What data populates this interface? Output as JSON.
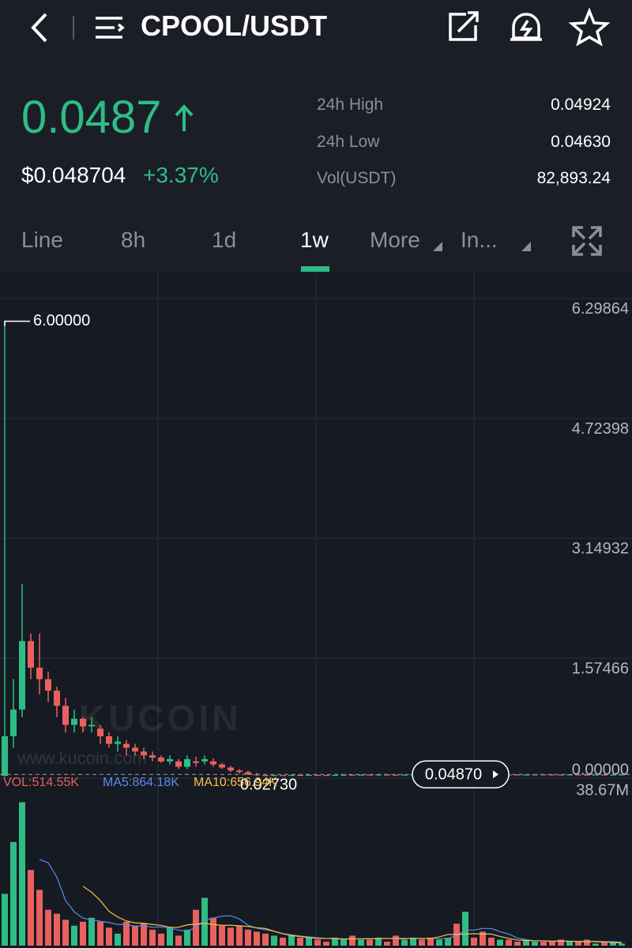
{
  "header": {
    "title": "CPOOL/USDT"
  },
  "ticker": {
    "price": "0.0487",
    "usd_price": "$0.048704",
    "change": "+3.37%",
    "stats": [
      {
        "label": "24h High",
        "value": "0.04924"
      },
      {
        "label": "24h Low",
        "value": "0.04630"
      },
      {
        "label": "Vol(USDT)",
        "value": "82,893.24"
      }
    ]
  },
  "tabs": [
    "Line",
    "8h",
    "1d",
    "1w",
    "More",
    "In..."
  ],
  "active_tab": 3,
  "watermark": {
    "brand": "KUCOIN",
    "url": "www.kucoin.com"
  },
  "chart_data": [
    {
      "type": "candlestick",
      "up_color": "#2ebd85",
      "down_color": "#e8615f",
      "grid": true,
      "ylim": [
        0,
        6.64
      ],
      "yticks": [
        {
          "value": 0,
          "label": "0.00000"
        },
        1.57466,
        3.14932,
        4.72398,
        6.29864
      ],
      "max_label": {
        "value": 6,
        "label": "6.00000"
      },
      "min_label": {
        "value": 0.0273,
        "label": "0.02730"
      },
      "last_price": {
        "value": 0.0487,
        "label": "0.04870"
      },
      "open": [
        0.03,
        0.55,
        0.9,
        1.8,
        1.45,
        1.3,
        1.15,
        0.95,
        0.7,
        0.78,
        0.68,
        0.65,
        0.55,
        0.45,
        0.45,
        0.4,
        0.35,
        0.3,
        0.27,
        0.22,
        0.22,
        0.15,
        0.22,
        0.22,
        0.22,
        0.18,
        0.14,
        0.1,
        0.08,
        0.05,
        0.04,
        0.035,
        0.04,
        0.038,
        0.042,
        0.04,
        0.043,
        0.041,
        0.039,
        0.042,
        0.045,
        0.043,
        0.046,
        0.044,
        0.047,
        0.045,
        0.043,
        0.046,
        0.048,
        0.046,
        0.044,
        0.047,
        0.05,
        0.048,
        0.052,
        0.05,
        0.048,
        0.047,
        0.049,
        0.048,
        0.046,
        0.047,
        0.049,
        0.048,
        0.047,
        0.046,
        0.048,
        0.047,
        0.046,
        0.047,
        0.046,
        0.0471
      ],
      "high": [
        6.0,
        1.3,
        2.55,
        1.9,
        1.9,
        1.4,
        1.2,
        1.05,
        0.9,
        0.8,
        0.8,
        0.7,
        0.6,
        0.55,
        0.5,
        0.45,
        0.4,
        0.35,
        0.3,
        0.3,
        0.25,
        0.3,
        0.28,
        0.3,
        0.26,
        0.2,
        0.16,
        0.12,
        0.1,
        0.07,
        0.05,
        0.043,
        0.043,
        0.045,
        0.045,
        0.046,
        0.046,
        0.044,
        0.045,
        0.048,
        0.048,
        0.049,
        0.049,
        0.05,
        0.05,
        0.048,
        0.049,
        0.051,
        0.051,
        0.049,
        0.05,
        0.053,
        0.053,
        0.058,
        0.055,
        0.053,
        0.051,
        0.052,
        0.052,
        0.051,
        0.05,
        0.052,
        0.052,
        0.051,
        0.05,
        0.051,
        0.051,
        0.05,
        0.05,
        0.05,
        0.05,
        0.04924
      ],
      "low": [
        0.02,
        0.4,
        0.8,
        1.3,
        1.1,
        1.0,
        0.8,
        0.6,
        0.6,
        0.6,
        0.6,
        0.45,
        0.4,
        0.35,
        0.3,
        0.3,
        0.25,
        0.22,
        0.2,
        0.18,
        0.12,
        0.12,
        0.15,
        0.18,
        0.15,
        0.12,
        0.08,
        0.06,
        0.04,
        0.03,
        0.0273,
        0.032,
        0.035,
        0.035,
        0.037,
        0.037,
        0.038,
        0.036,
        0.036,
        0.039,
        0.04,
        0.04,
        0.041,
        0.041,
        0.042,
        0.04,
        0.04,
        0.043,
        0.043,
        0.041,
        0.041,
        0.044,
        0.045,
        0.045,
        0.047,
        0.045,
        0.044,
        0.044,
        0.045,
        0.043,
        0.043,
        0.044,
        0.045,
        0.044,
        0.043,
        0.043,
        0.044,
        0.043,
        0.043,
        0.043,
        0.043,
        0.0463
      ],
      "close": [
        0.55,
        0.9,
        1.8,
        1.45,
        1.3,
        1.15,
        0.95,
        0.7,
        0.78,
        0.68,
        0.7,
        0.55,
        0.45,
        0.48,
        0.4,
        0.35,
        0.3,
        0.27,
        0.22,
        0.25,
        0.15,
        0.25,
        0.2,
        0.25,
        0.18,
        0.14,
        0.1,
        0.08,
        0.05,
        0.04,
        0.035,
        0.04,
        0.038,
        0.042,
        0.04,
        0.043,
        0.041,
        0.039,
        0.042,
        0.045,
        0.043,
        0.046,
        0.044,
        0.047,
        0.045,
        0.043,
        0.046,
        0.048,
        0.046,
        0.044,
        0.047,
        0.05,
        0.048,
        0.052,
        0.05,
        0.048,
        0.047,
        0.049,
        0.048,
        0.046,
        0.047,
        0.049,
        0.048,
        0.047,
        0.046,
        0.048,
        0.047,
        0.046,
        0.047,
        0.046,
        0.0471,
        0.0487
      ]
    },
    {
      "type": "bar",
      "ylim": [
        0,
        38.67
      ],
      "yticks": [
        {
          "value": 38.67,
          "label": "38.67M"
        }
      ],
      "series": [
        {
          "name": "VOL:514.55K",
          "color": "#e8615f",
          "values": [
            13,
            26,
            36,
            19,
            14,
            9,
            8,
            6.5,
            5,
            6,
            7,
            6,
            4.5,
            3,
            6,
            5,
            5.5,
            4,
            3,
            4.5,
            2.5,
            4,
            9,
            12,
            7,
            5,
            4.5,
            5,
            4,
            3.5,
            3,
            2.5,
            2,
            2.5,
            2,
            2,
            1.5,
            1,
            2,
            1.5,
            2.5,
            1.5,
            1.5,
            2,
            1,
            2.5,
            1.5,
            2,
            1.5,
            2,
            1.5,
            2,
            5.5,
            8.5,
            2,
            3.5,
            2,
            1.5,
            1.5,
            1,
            1.5,
            1,
            1,
            1,
            1.5,
            1,
            1,
            1.5,
            0.5,
            1,
            1,
            0.51455
          ]
        },
        {
          "name": "MA5:864.18K",
          "color": "#5b8def",
          "values": [
            null,
            null,
            null,
            null,
            21.6,
            20.8,
            17.2,
            11.3,
            8.5,
            6.9,
            6.5,
            6.1,
            5.8,
            5.3,
            5.3,
            4.9,
            5,
            4.6,
            4.7,
            4.4,
            3.9,
            3.6,
            4.6,
            6.4,
            6.9,
            7.4,
            7.5,
            6.7,
            5.1,
            4.4,
            4,
            3.6,
            3,
            2.7,
            2.4,
            2.2,
            2,
            1.8,
            1.7,
            1.6,
            1.7,
            1.7,
            1.8,
            1.7,
            1.8,
            1.7,
            1.7,
            1.9,
            1.7,
            1.9,
            1.7,
            1.8,
            2.5,
            3.9,
            3.9,
            4.3,
            4.3,
            3.5,
            2.9,
            1.9,
            1.5,
            1.2,
            1.2,
            1.1,
            1.2,
            1.1,
            1.1,
            1.1,
            1.1,
            1.0,
            1.0,
            0.86418
          ]
        },
        {
          "name": "MA10:656.94K",
          "color": "#f5c342",
          "values": [
            null,
            null,
            null,
            null,
            null,
            null,
            null,
            null,
            null,
            14.9,
            13.4,
            11.3,
            8.6,
            7.2,
            6.2,
            5.7,
            5.6,
            5.3,
            5.1,
            4.6,
            4.6,
            5.2,
            5.4,
            5.6,
            5.3,
            5.1,
            5.1,
            5.0,
            4.8,
            4.5,
            4.3,
            3.6,
            3.0,
            2.5,
            2.3,
            2.0,
            1.8,
            1.8,
            1.8,
            1.7,
            1.7,
            1.7,
            1.7,
            1.8,
            1.8,
            1.8,
            1.8,
            1.8,
            1.8,
            1.8,
            2.2,
            2.8,
            2.8,
            2.9,
            3.0,
            2.9,
            2.9,
            2.3,
            1.8,
            1.4,
            1.3,
            1.2,
            1.2,
            1.1,
            1.1,
            1.1,
            1.0,
            1.0,
            1.0,
            0.9,
            0.8,
            0.65694
          ]
        }
      ]
    }
  ]
}
